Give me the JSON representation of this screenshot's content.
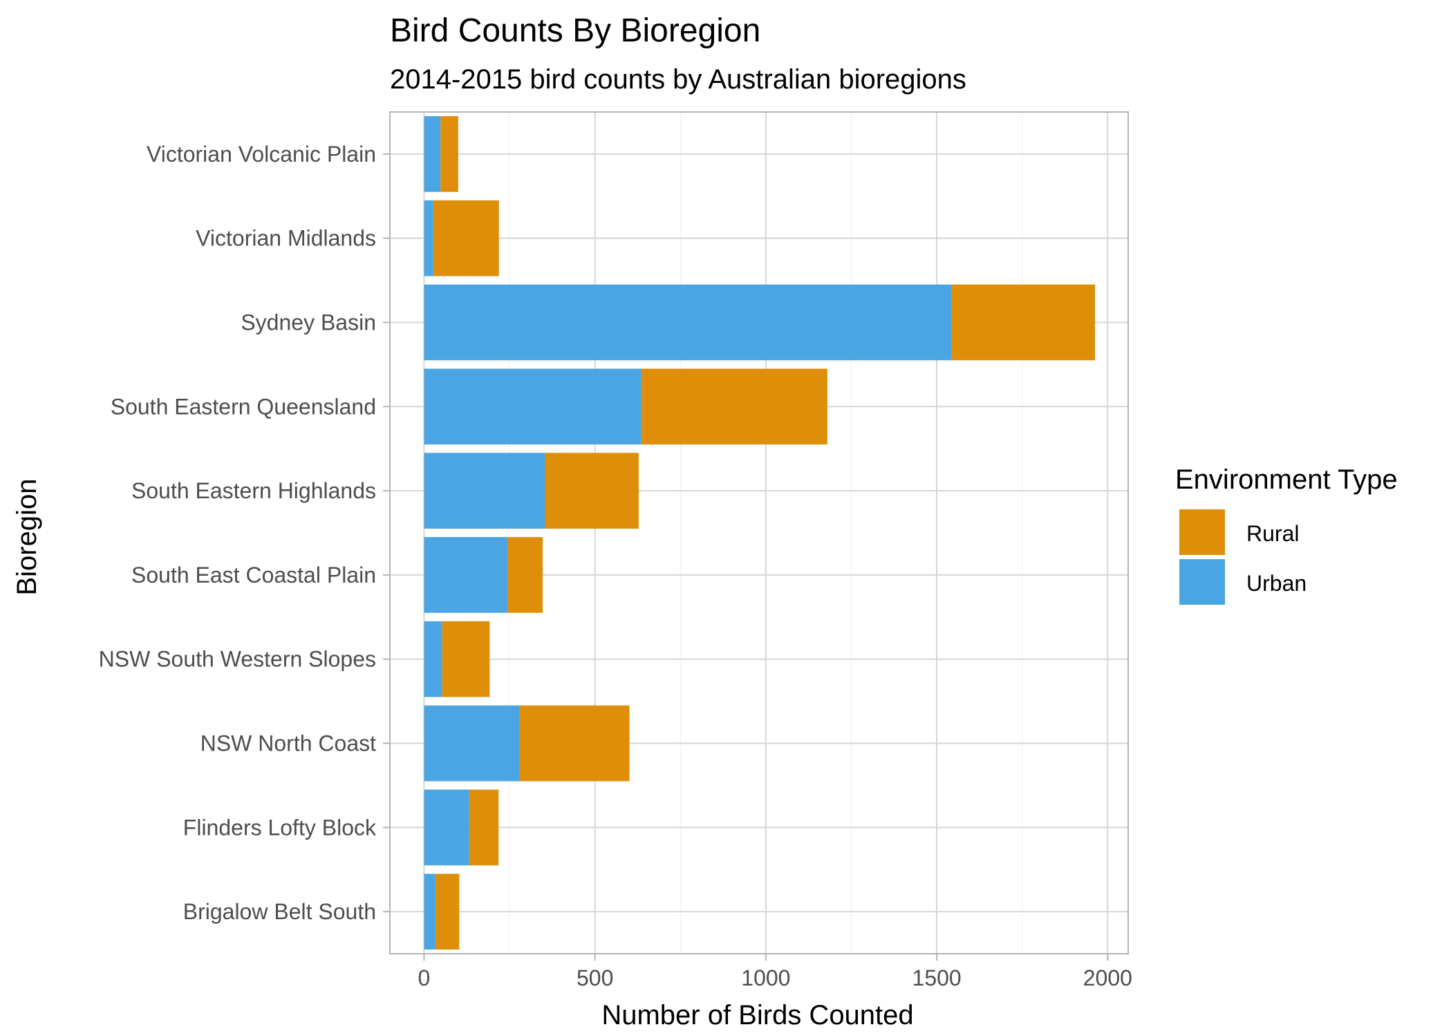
{
  "chart_data": {
    "type": "bar",
    "orientation": "horizontal",
    "stacked": true,
    "title": "Bird Counts By Bioregion",
    "subtitle": "2014-2015 bird counts by Australian bioregions",
    "xlabel": "Number of Birds Counted",
    "ylabel": "Bioregion",
    "xlim": [
      -100,
      2060
    ],
    "xticks": [
      0,
      500,
      1000,
      1500,
      2000
    ],
    "xtick_labels": [
      "0",
      "500",
      "1000",
      "1500",
      "2000"
    ],
    "categories": [
      "Victorian Volcanic Plain",
      "Victorian Midlands",
      "Sydney Basin",
      "South Eastern Queensland",
      "South Eastern Highlands",
      "South East Coastal Plain",
      "NSW South Western Slopes",
      "NSW North Coast",
      "Flinders Lofty Block",
      "Brigalow Belt South"
    ],
    "series": [
      {
        "name": "Urban",
        "color": "#4aa5e2",
        "values": [
          48,
          27,
          1543,
          636,
          354,
          244,
          53,
          279,
          132,
          33
        ]
      },
      {
        "name": "Rural",
        "color": "#df8e0a",
        "values": [
          52,
          192,
          420,
          544,
          274,
          103,
          139,
          322,
          86,
          70
        ]
      }
    ],
    "grid": true,
    "legend": {
      "title": "Environment Type",
      "position": "right",
      "entries": [
        {
          "label": "Rural",
          "color": "#df8e0a"
        },
        {
          "label": "Urban",
          "color": "#4aa5e2"
        }
      ]
    }
  }
}
